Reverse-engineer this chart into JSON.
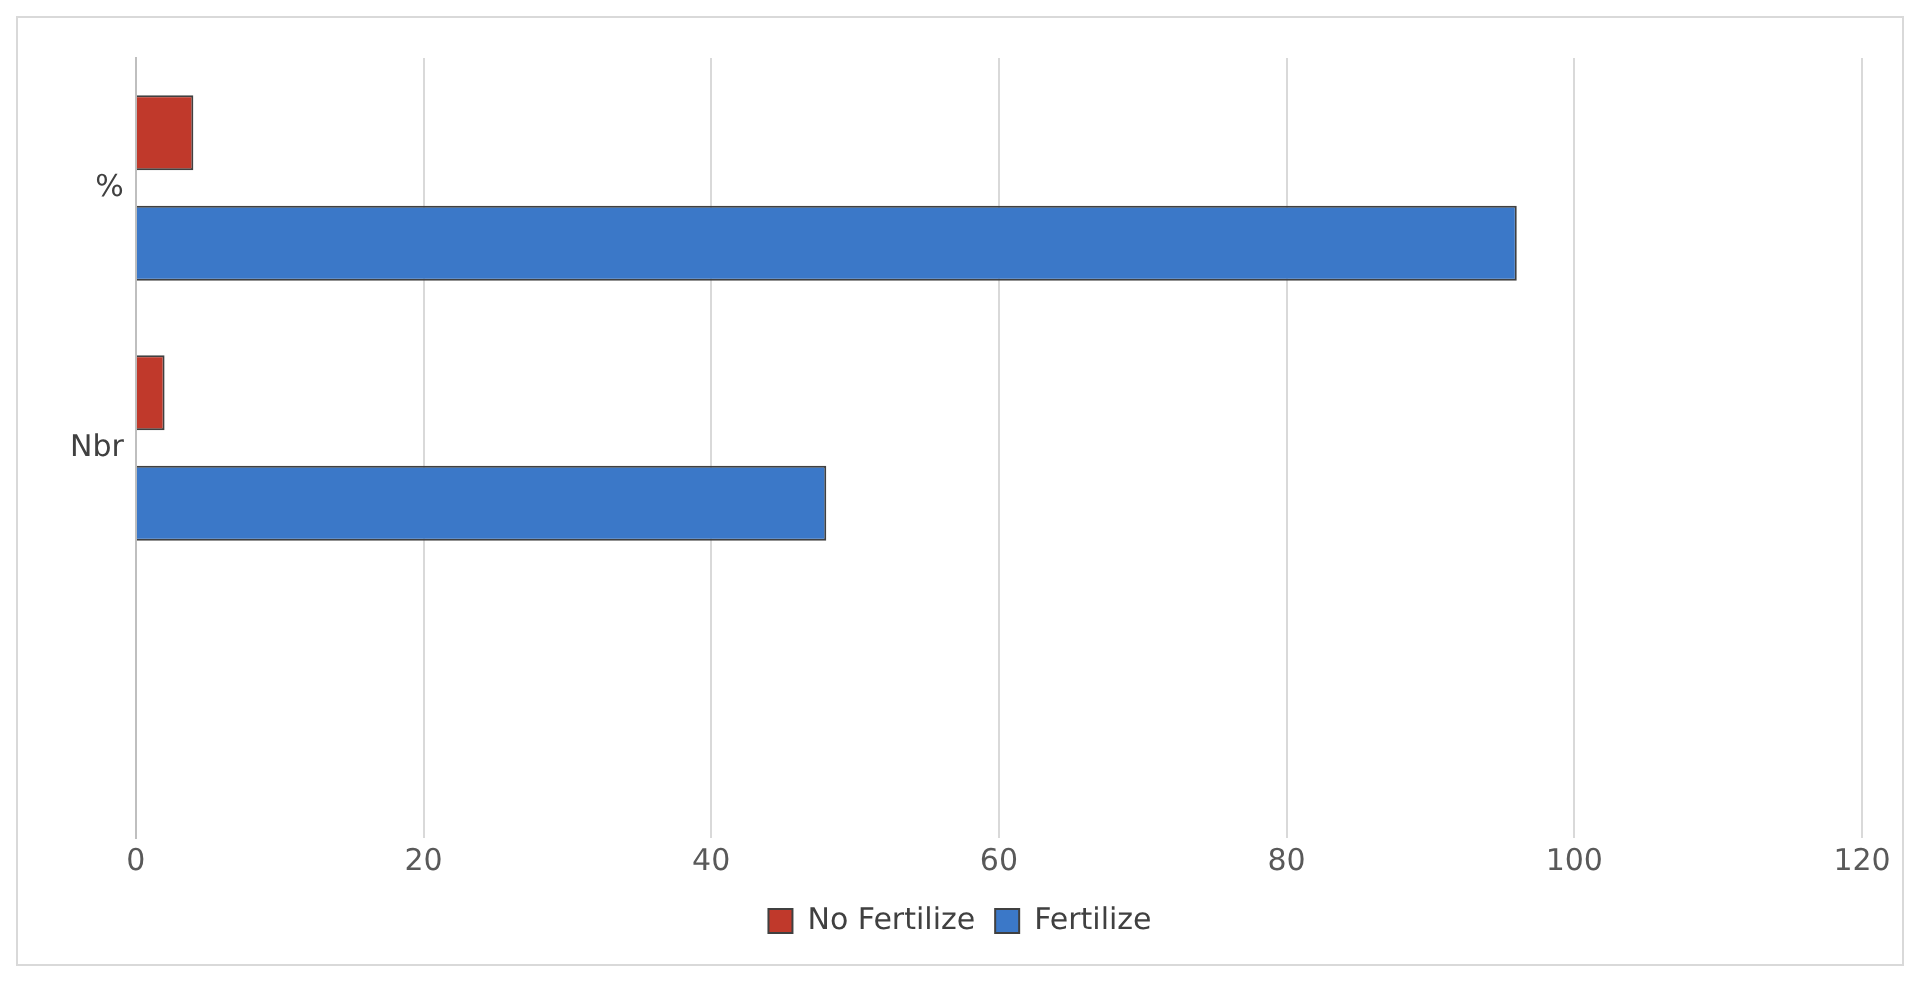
{
  "chart_data": {
    "type": "bar",
    "orientation": "horizontal",
    "categories": [
      "%",
      "Nbr",
      null
    ],
    "series": [
      {
        "name": "No Fertilize",
        "color": "#c0392b",
        "values": [
          4,
          2,
          null
        ]
      },
      {
        "name": "Fertilize",
        "color": "#3b78c8",
        "values": [
          96,
          48,
          null
        ]
      }
    ],
    "xlim": [
      0,
      120
    ],
    "xticks": [
      0,
      20,
      40,
      60,
      80,
      100,
      120
    ],
    "grid": "x",
    "legend": "bottom"
  }
}
